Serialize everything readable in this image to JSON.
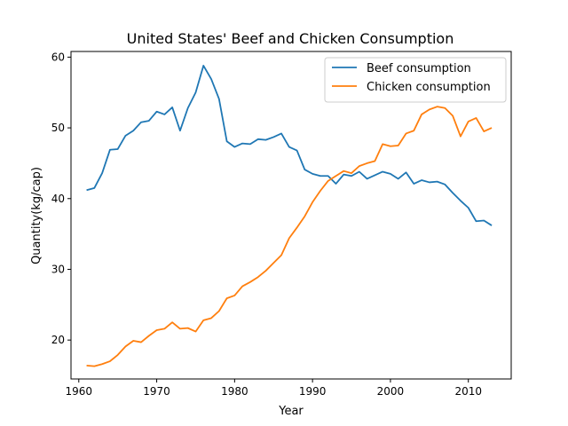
{
  "chart_data": {
    "type": "line",
    "title": "United States' Beef and Chicken Consumption",
    "xlabel": "Year",
    "ylabel": "Quantity(kg/cap)",
    "xlim": [
      1959,
      2015.5
    ],
    "ylim": [
      14.5,
      60.8
    ],
    "xticks": [
      1960,
      1970,
      1980,
      1990,
      2000,
      2010
    ],
    "yticks": [
      20,
      30,
      40,
      50,
      60
    ],
    "grid": false,
    "legend_position": "top-right",
    "x": [
      1961,
      1962,
      1963,
      1964,
      1965,
      1966,
      1967,
      1968,
      1969,
      1970,
      1971,
      1972,
      1973,
      1974,
      1975,
      1976,
      1977,
      1978,
      1979,
      1980,
      1981,
      1982,
      1983,
      1984,
      1985,
      1986,
      1987,
      1988,
      1989,
      1990,
      1991,
      1992,
      1993,
      1994,
      1995,
      1996,
      1997,
      1998,
      1999,
      2000,
      2001,
      2002,
      2003,
      2004,
      2005,
      2006,
      2007,
      2008,
      2009,
      2010,
      2011,
      2012,
      2013
    ],
    "series": [
      {
        "name": "Beef consumption",
        "color": "#1f77b4",
        "values": [
          41.2,
          41.5,
          43.6,
          46.9,
          47.0,
          48.9,
          49.6,
          50.8,
          51.0,
          52.3,
          51.9,
          52.9,
          49.6,
          52.8,
          55.0,
          58.8,
          56.9,
          54.1,
          48.1,
          47.3,
          47.8,
          47.7,
          48.4,
          48.3,
          48.7,
          49.2,
          47.3,
          46.8,
          44.1,
          43.5,
          43.2,
          43.2,
          42.1,
          43.4,
          43.2,
          43.8,
          42.8,
          43.3,
          43.8,
          43.5,
          42.8,
          43.7,
          42.1,
          42.6,
          42.3,
          42.4,
          42.0,
          40.8,
          39.7,
          38.7,
          36.8,
          36.9,
          36.2
        ]
      },
      {
        "name": "Chicken consumption",
        "color": "#ff7f0e",
        "values": [
          16.4,
          16.3,
          16.6,
          17.0,
          17.9,
          19.1,
          19.9,
          19.7,
          20.6,
          21.4,
          21.6,
          22.5,
          21.6,
          21.7,
          21.2,
          22.8,
          23.1,
          24.1,
          25.9,
          26.3,
          27.6,
          28.2,
          28.9,
          29.8,
          30.9,
          32.0,
          34.4,
          35.9,
          37.5,
          39.5,
          41.1,
          42.5,
          43.2,
          43.9,
          43.6,
          44.6,
          45.0,
          45.3,
          47.7,
          47.4,
          47.5,
          49.2,
          49.6,
          51.9,
          52.6,
          53.0,
          52.8,
          51.7,
          48.8,
          50.9,
          51.4,
          49.5,
          50.0
        ]
      }
    ]
  }
}
